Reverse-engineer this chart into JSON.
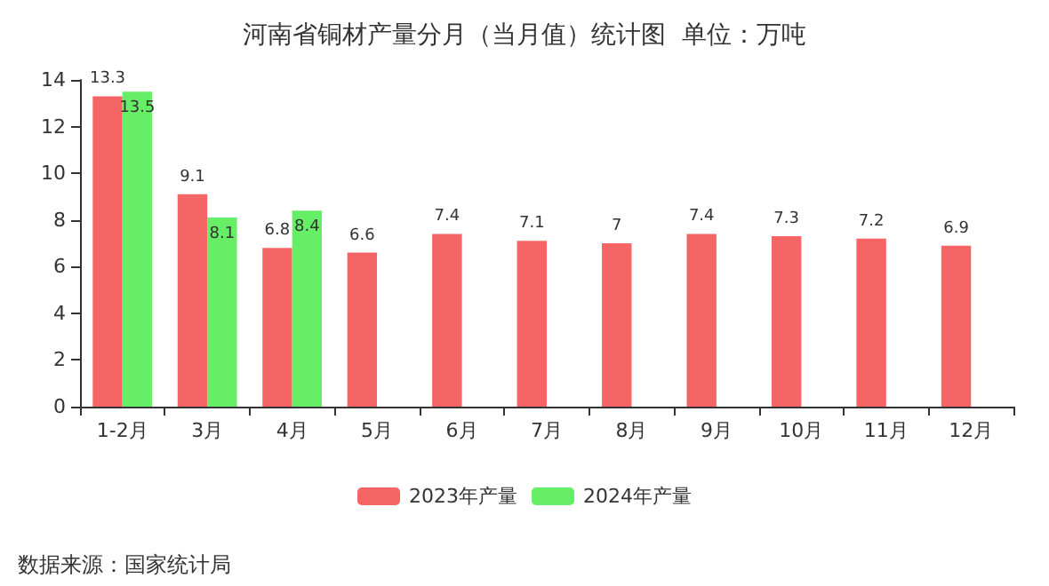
{
  "chart_data": {
    "type": "bar",
    "title": "河南省铜材产量分月（当月值）统计图  单位：万吨",
    "categories": [
      "1-2月",
      "3月",
      "4月",
      "5月",
      "6月",
      "7月",
      "8月",
      "9月",
      "10月",
      "11月",
      "12月"
    ],
    "series": [
      {
        "name": "2023年产量",
        "color": "#f56565",
        "values": [
          13.3,
          9.1,
          6.8,
          6.6,
          7.4,
          7.1,
          7,
          7.4,
          7.3,
          7.2,
          6.9
        ]
      },
      {
        "name": "2024年产量",
        "color": "#66ee66",
        "values": [
          13.5,
          8.1,
          8.4,
          null,
          null,
          null,
          null,
          null,
          null,
          null,
          null
        ]
      }
    ],
    "ylim": [
      0,
      14
    ],
    "yticks": [
      0,
      2,
      4,
      6,
      8,
      10,
      12,
      14
    ],
    "grid": false,
    "legend": "bottom",
    "data_labels": true,
    "annotations": [
      "数据来源：国家统计局"
    ]
  }
}
